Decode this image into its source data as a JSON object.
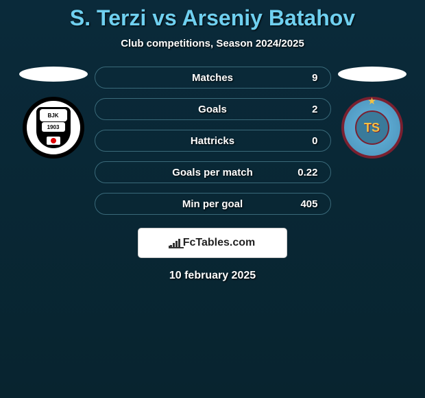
{
  "title": "S. Terzi vs Arseniy Batahov",
  "subtitle": "Club competitions, Season 2024/2025",
  "date": "10 february 2025",
  "brand": "FcTables.com",
  "left_badge": {
    "top_text": "BJK",
    "year": "1903"
  },
  "right_badge": {
    "letters": "TS"
  },
  "stats": [
    {
      "label": "Matches",
      "value": "9",
      "fill_pct": 0,
      "fill_color": "#3aa85a"
    },
    {
      "label": "Goals",
      "value": "2",
      "fill_pct": 0,
      "fill_color": "#3aa85a"
    },
    {
      "label": "Hattricks",
      "value": "0",
      "fill_pct": 0,
      "fill_color": "#3aa85a"
    },
    {
      "label": "Goals per match",
      "value": "0.22",
      "fill_pct": 0,
      "fill_color": "#3aa85a"
    },
    {
      "label": "Min per goal",
      "value": "405",
      "fill_pct": 0,
      "fill_color": "#3aa85a"
    }
  ],
  "colors": {
    "bg_top": "#0a2a3a",
    "bg_bottom": "#08242f",
    "title": "#6fd0f0",
    "bar_border": "#3a6a7a"
  }
}
